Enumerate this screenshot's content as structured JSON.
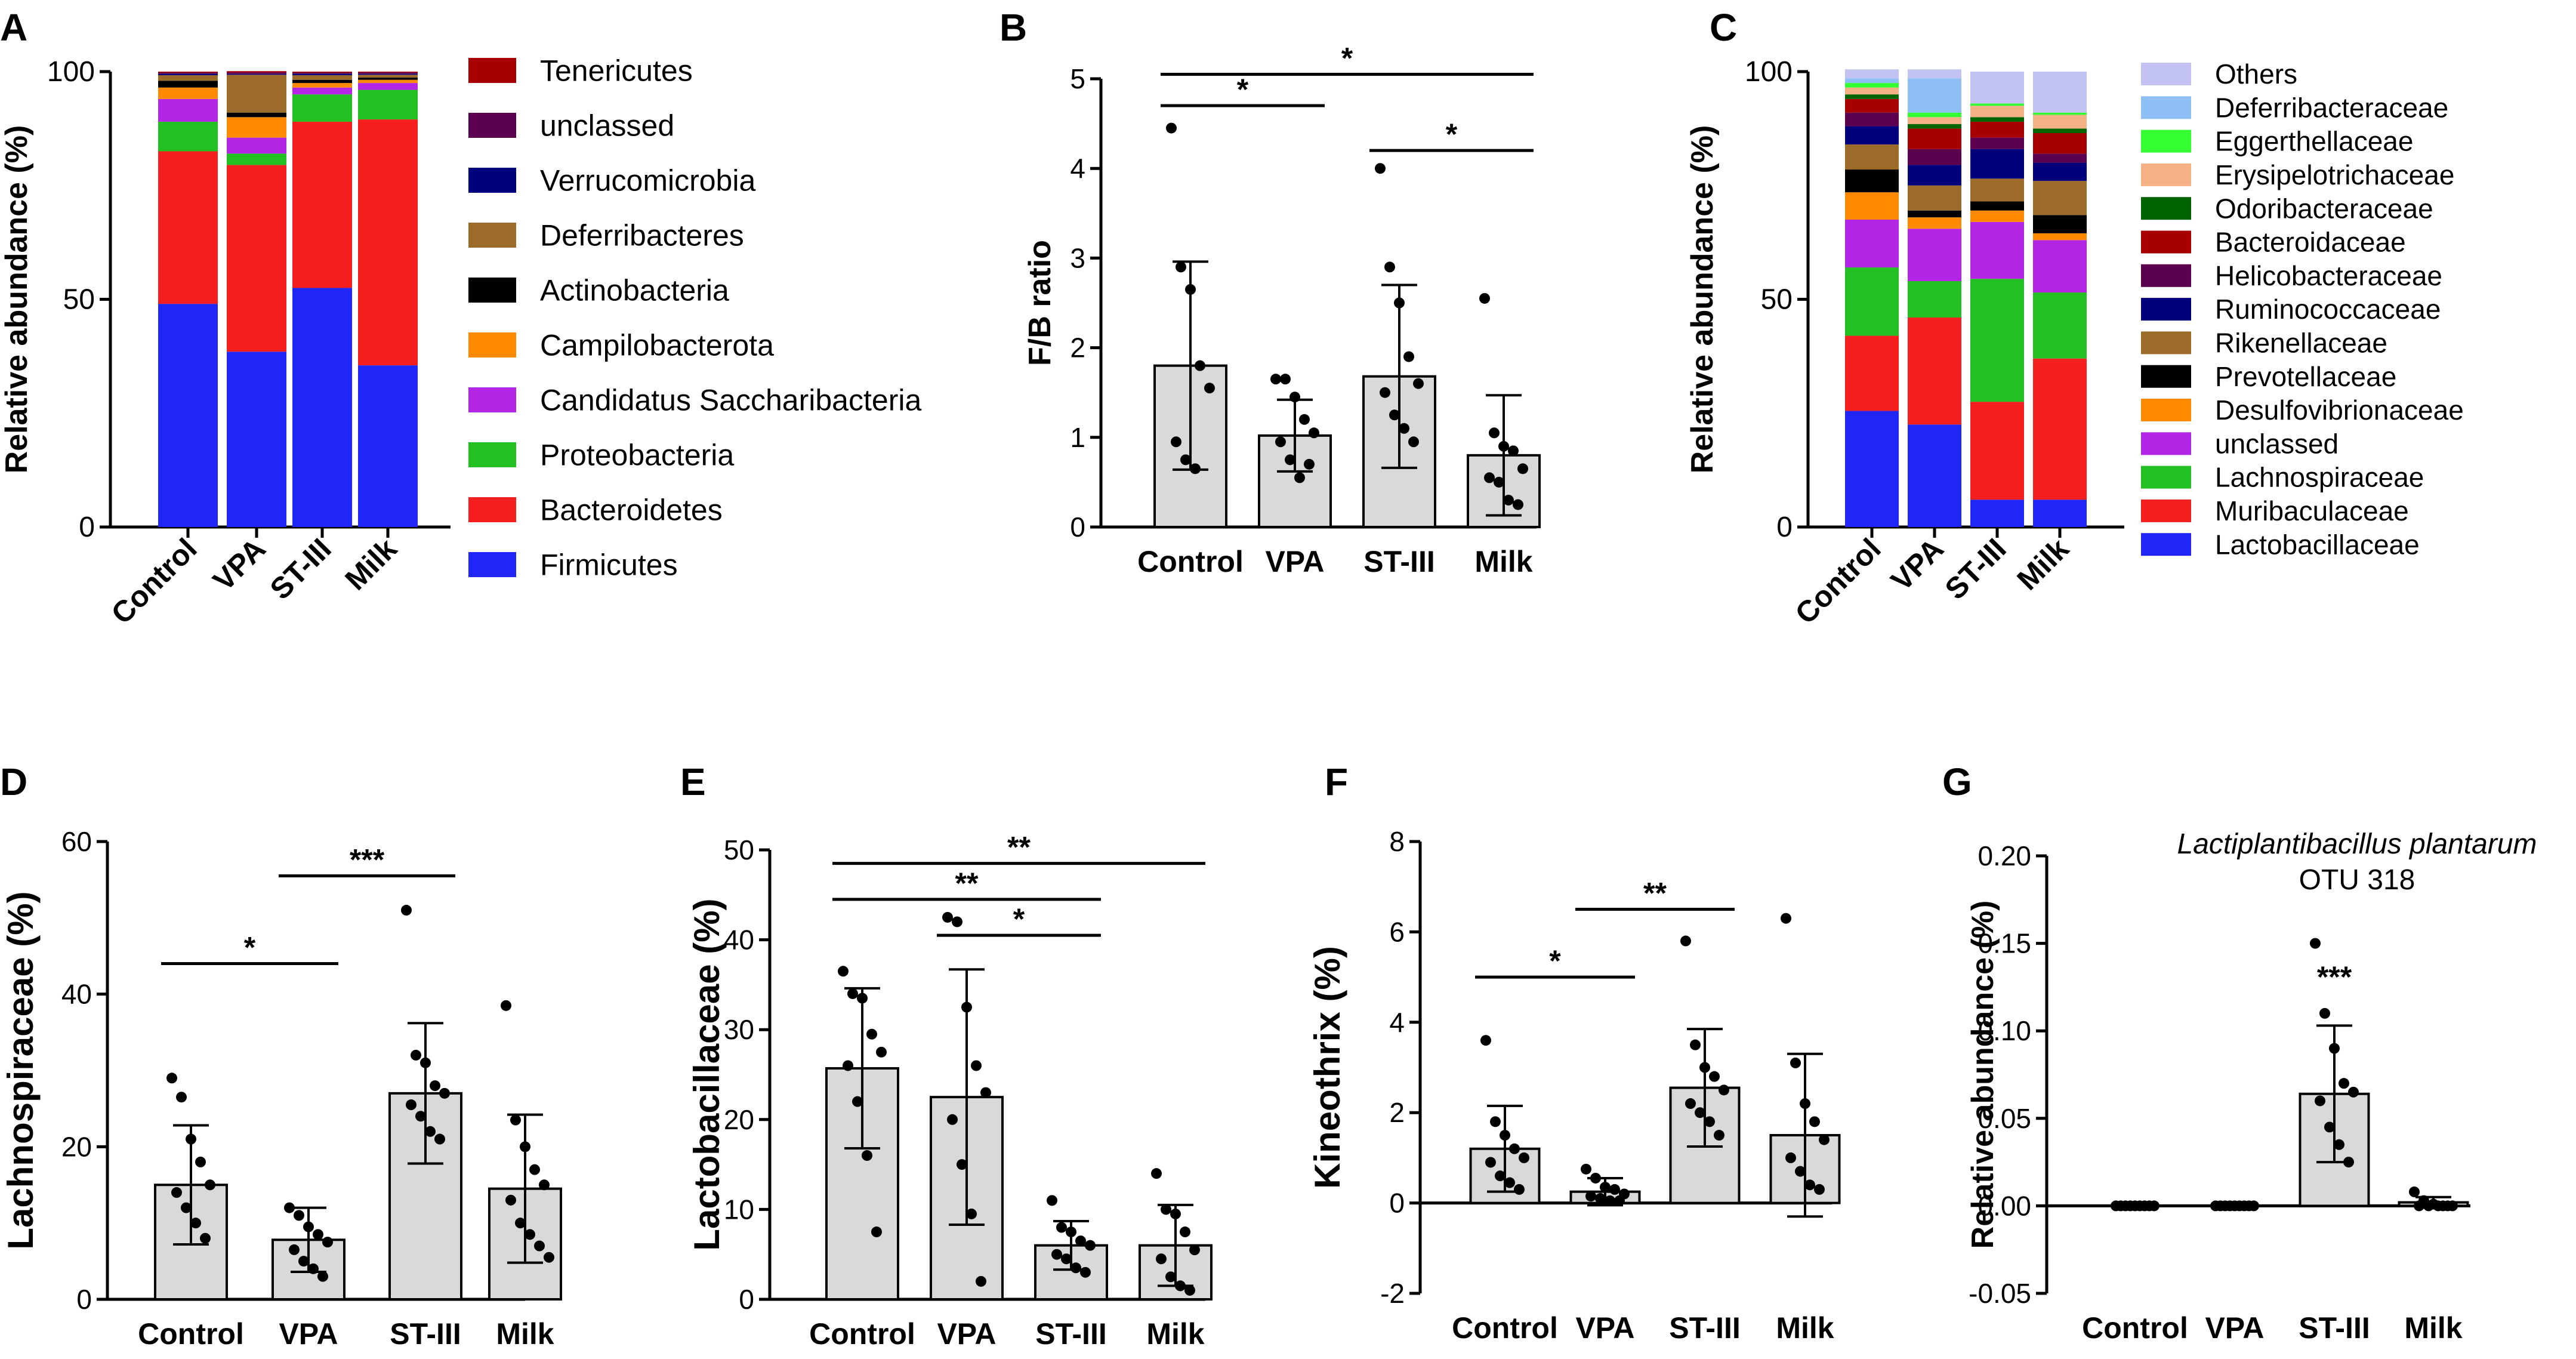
{
  "figure": {
    "groups": [
      "Control",
      "VPA",
      "ST-III",
      "Milk"
    ]
  },
  "chart_data": [
    {
      "panel": "A",
      "type": "bar",
      "stacked": true,
      "ylabel": "Relative abundance (%)",
      "ylim": [
        0,
        100
      ],
      "yticks": [
        0,
        50,
        100
      ],
      "categories": [
        "Control",
        "VPA",
        "ST-III",
        "Milk"
      ],
      "series": [
        {
          "name": "Firmicutes",
          "color": "#1f26f5",
          "values": [
            49,
            38.5,
            52.5,
            35.5
          ]
        },
        {
          "name": "Bacteroidetes",
          "color": "#f51f1f",
          "values": [
            33.5,
            41,
            36.5,
            54
          ]
        },
        {
          "name": "Proteobacteria",
          "color": "#22c022",
          "values": [
            6.5,
            2.5,
            6,
            6.5
          ]
        },
        {
          "name": "Candidatus Saccharibacteria",
          "color": "#b326e6",
          "values": [
            5,
            3.5,
            1.5,
            1.5
          ]
        },
        {
          "name": "Campilobacterota",
          "color": "#ff8a00",
          "values": [
            2.5,
            4.5,
            1,
            0.7
          ]
        },
        {
          "name": "Actinobacteria",
          "color": "#000000",
          "values": [
            1.5,
            1,
            0.7,
            0.5
          ]
        },
        {
          "name": "Deferribacteres",
          "color": "#9c6b2a",
          "values": [
            1.2,
            8.3,
            1,
            0.6
          ]
        },
        {
          "name": "Verrucomicrobia",
          "color": "#00007d",
          "values": [
            0.3,
            0.2,
            0.3,
            0.2
          ]
        },
        {
          "name": "unclassed",
          "color": "#5c0050",
          "values": [
            0.3,
            0.3,
            0.3,
            0.3
          ]
        },
        {
          "name": "Tenericutes",
          "color": "#a80000",
          "values": [
            0.2,
            0.3,
            0.2,
            0.2
          ]
        }
      ],
      "legend_order": [
        "Tenericutes",
        "unclassed",
        "Verrucomicrobia",
        "Deferribacteres",
        "Actinobacteria",
        "Campilobacterota",
        "Candidatus Saccharibacteria",
        "Proteobacteria",
        "Bacteroidetes",
        "Firmicutes"
      ]
    },
    {
      "panel": "B",
      "type": "bar",
      "ylabel": "F/B ratio",
      "ylim": [
        0,
        5
      ],
      "yticks": [
        0,
        1,
        2,
        3,
        4,
        5
      ],
      "categories": [
        "Control",
        "VPA",
        "ST-III",
        "Milk"
      ],
      "values": [
        1.8,
        1.02,
        1.68,
        0.8
      ],
      "sd": [
        1.16,
        0.4,
        1.02,
        0.67
      ],
      "points": [
        [
          4.45,
          2.9,
          2.65,
          1.8,
          1.55,
          0.95,
          0.75,
          0.65
        ],
        [
          1.65,
          1.65,
          1.45,
          1.2,
          1.05,
          0.95,
          0.75,
          0.55,
          0.7
        ],
        [
          4.0,
          2.9,
          2.5,
          1.9,
          1.6,
          1.5,
          1.25,
          1.1,
          0.95
        ],
        [
          2.55,
          1.05,
          0.9,
          0.85,
          0.65,
          0.55,
          0.5,
          0.3,
          0.25
        ]
      ],
      "significance": [
        {
          "from": 0,
          "to": 1,
          "y": 4.7,
          "label": "*"
        },
        {
          "from": 0,
          "to": 3,
          "y": 5.05,
          "label": "*"
        },
        {
          "from": 2,
          "to": 3,
          "y": 4.2,
          "label": "*"
        }
      ]
    },
    {
      "panel": "C",
      "type": "bar",
      "stacked": true,
      "ylabel": "Relative abundance (%)",
      "ylim": [
        0,
        100
      ],
      "yticks": [
        0,
        50,
        100
      ],
      "categories": [
        "Control",
        "VPA",
        "ST-III",
        "Milk"
      ],
      "series": [
        {
          "name": "Lactobacillaceae",
          "color": "#1f26f5",
          "values": [
            25.5,
            22.5,
            6,
            6
          ]
        },
        {
          "name": "Muribaculaceae",
          "color": "#f51f1f",
          "values": [
            16.5,
            23.5,
            21.5,
            31
          ]
        },
        {
          "name": "Lachnospiraceae",
          "color": "#22c022",
          "values": [
            15,
            8,
            27,
            14.5
          ]
        },
        {
          "name": "unclassed",
          "color": "#b326e6",
          "values": [
            10.5,
            11.5,
            12.5,
            11.5
          ]
        },
        {
          "name": "Desulfovibrionaceae",
          "color": "#ff8a00",
          "values": [
            6,
            2.5,
            2.5,
            1.5
          ]
        },
        {
          "name": "Prevotellaceae",
          "color": "#000000",
          "values": [
            5,
            1.5,
            2,
            4
          ]
        },
        {
          "name": "Rikenellaceae",
          "color": "#9c6b2a",
          "values": [
            5.5,
            5.5,
            5,
            7.5
          ]
        },
        {
          "name": "Ruminococcaceae",
          "color": "#00007d",
          "values": [
            4,
            4.5,
            6.5,
            4
          ]
        },
        {
          "name": "Helicobacteraceae",
          "color": "#5c0050",
          "values": [
            3,
            3.5,
            2.5,
            2
          ]
        },
        {
          "name": "Bacteroidaceae",
          "color": "#a80000",
          "values": [
            3,
            4.5,
            3.5,
            4.5
          ]
        },
        {
          "name": "Odoribacteraceae",
          "color": "#006400",
          "values": [
            1,
            1,
            1,
            1
          ]
        },
        {
          "name": "Erysipelotrichaceae",
          "color": "#f4b183",
          "values": [
            1.5,
            1.5,
            2.5,
            3
          ]
        },
        {
          "name": "Eggerthellaceae",
          "color": "#33ff33",
          "values": [
            1,
            1,
            0.5,
            0.5
          ]
        },
        {
          "name": "Deferribacteraceae",
          "color": "#8ec0f5",
          "values": [
            1,
            7.5,
            0,
            0
          ]
        },
        {
          "name": "Others",
          "color": "#c3c3f3",
          "values": [
            2,
            2,
            7,
            9
          ]
        }
      ],
      "legend_order": [
        "Others",
        "Deferribacteraceae",
        "Eggerthellaceae",
        "Erysipelotrichaceae",
        "Odoribacteraceae",
        "Bacteroidaceae",
        "Helicobacteraceae",
        "Ruminococcaceae",
        "Rikenellaceae",
        "Prevotellaceae",
        "Desulfovibrionaceae",
        "unclassed",
        "Lachnospiraceae",
        "Muribaculaceae",
        "Lactobacillaceae"
      ]
    },
    {
      "panel": "D",
      "type": "bar",
      "ylabel": "Lachnospiraceae (%)",
      "ylim": [
        0,
        60
      ],
      "yticks": [
        0,
        20,
        40,
        60
      ],
      "categories": [
        "Control",
        "VPA",
        "ST-III",
        "Milk"
      ],
      "values": [
        15,
        7.8,
        27,
        14.5
      ],
      "sd": [
        7.8,
        4.2,
        9.2,
        9.7
      ],
      "points": [
        [
          29,
          26.5,
          21,
          18,
          15,
          14,
          12,
          10,
          8
        ],
        [
          12,
          11,
          9.5,
          8.5,
          7.5,
          6.5,
          5,
          4,
          3
        ],
        [
          51,
          32,
          31,
          28,
          27,
          25.5,
          24,
          22,
          21
        ],
        [
          38.5,
          23.5,
          20,
          17,
          15,
          13,
          10,
          8.5,
          7,
          5.5
        ]
      ],
      "significance": [
        {
          "from": 0,
          "to": 1,
          "y": 44,
          "label": "*"
        },
        {
          "from": 1,
          "to": 2,
          "y": 55.5,
          "label": "***"
        }
      ]
    },
    {
      "panel": "E",
      "type": "bar",
      "ylabel": "Lactobacillaceae (%)",
      "ylim": [
        0,
        50
      ],
      "yticks": [
        0,
        10,
        20,
        30,
        40,
        50
      ],
      "categories": [
        "Control",
        "VPA",
        "ST-III",
        "Milk"
      ],
      "values": [
        25.7,
        22.5,
        6,
        6
      ],
      "sd": [
        8.9,
        14.2,
        2.7,
        4.5
      ],
      "points": [
        [
          36.5,
          34,
          33.5,
          29.5,
          27.5,
          26,
          22,
          16,
          7.5
        ],
        [
          42.5,
          42,
          32.5,
          26,
          23,
          20,
          15,
          9.5,
          2
        ],
        [
          11,
          8,
          7.5,
          6.5,
          6,
          5,
          4.5,
          3.5,
          3
        ],
        [
          14,
          10,
          9.5,
          7.5,
          5.5,
          4.5,
          2.5,
          1.5,
          1
        ]
      ],
      "significance": [
        {
          "from": 0,
          "to": 3,
          "y": 48.5,
          "label": "**"
        },
        {
          "from": 0,
          "to": 2,
          "y": 44.5,
          "label": "**"
        },
        {
          "from": 1,
          "to": 2,
          "y": 40.5,
          "label": "*"
        }
      ]
    },
    {
      "panel": "F",
      "type": "bar",
      "ylabel": "Kineothrix (%)",
      "ylim": [
        -2,
        8
      ],
      "yticks": [
        -2,
        0,
        2,
        4,
        6,
        8
      ],
      "categories": [
        "Control",
        "VPA",
        "ST-III",
        "Milk"
      ],
      "values": [
        1.2,
        0.25,
        2.55,
        1.5
      ],
      "sd": [
        0.95,
        0.3,
        1.3,
        1.8
      ],
      "points": [
        [
          3.6,
          1.8,
          1.5,
          1.2,
          1.0,
          0.9,
          0.6,
          0.45,
          0.3
        ],
        [
          0.75,
          0.55,
          0.35,
          0.3,
          0.2,
          0.15,
          0.1,
          0.05,
          0.05
        ],
        [
          5.8,
          3.5,
          3.0,
          2.8,
          2.5,
          2.2,
          2.0,
          1.8,
          1.5
        ],
        [
          6.3,
          3.1,
          2.2,
          1.8,
          1.4,
          1.0,
          0.7,
          0.4,
          0.3
        ]
      ],
      "significance": [
        {
          "from": 0,
          "to": 1,
          "y": 5.0,
          "label": "*"
        },
        {
          "from": 1,
          "to": 2,
          "y": 6.5,
          "label": "**"
        }
      ]
    },
    {
      "panel": "G",
      "type": "bar",
      "title_italic": "Lactiplantibacillus plantarum",
      "title": "OTU 318",
      "ylabel": "Relative abundance (%)",
      "ylim": [
        -0.05,
        0.2
      ],
      "yticks": [
        -0.05,
        0.0,
        0.05,
        0.1,
        0.15,
        0.2
      ],
      "ytick_labels": [
        "-0.05",
        "0.00",
        "0.05",
        "0.10",
        "0.15",
        "0.20"
      ],
      "categories": [
        "Control",
        "VPA",
        "ST-III",
        "Milk"
      ],
      "values": [
        0,
        0,
        0.064,
        0.002
      ],
      "sd": [
        0,
        0,
        0.039,
        0.003
      ],
      "points": [
        [
          0,
          0,
          0,
          0,
          0,
          0,
          0,
          0,
          0
        ],
        [
          0,
          0,
          0,
          0,
          0,
          0,
          0,
          0,
          0
        ],
        [
          0.15,
          0.11,
          0.09,
          0.07,
          0.065,
          0.06,
          0.045,
          0.035,
          0.025
        ],
        [
          0.008,
          0.003,
          0.001,
          0,
          0,
          0,
          0,
          0,
          0
        ]
      ],
      "star_labels": [
        {
          "index": 2,
          "y": 0.125,
          "label": "***"
        }
      ]
    }
  ]
}
